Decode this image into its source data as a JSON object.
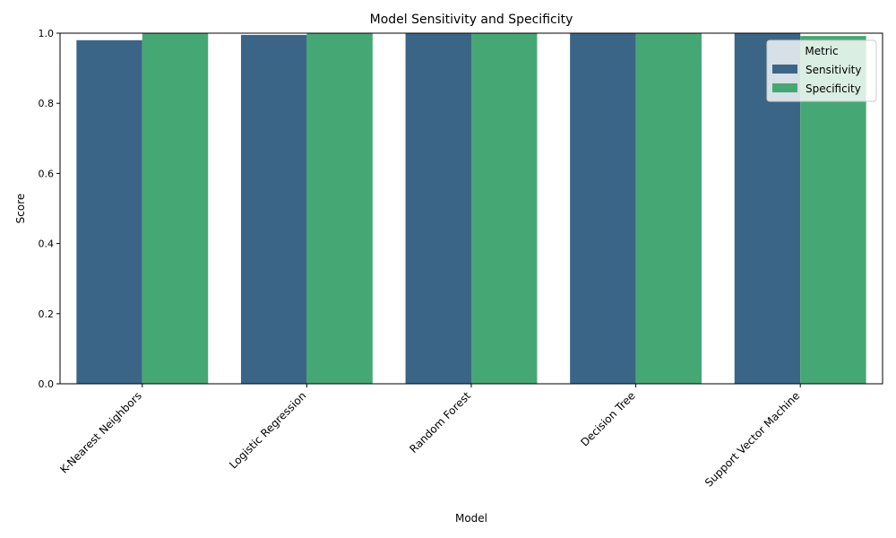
{
  "chart_data": {
    "type": "bar",
    "title": "Model Sensitivity and Specificity",
    "xlabel": "Model",
    "ylabel": "Score",
    "ylim": [
      0,
      1.0
    ],
    "yticks": [
      "0.0",
      "0.2",
      "0.4",
      "0.6",
      "0.8",
      "1.0"
    ],
    "categories": [
      "K-Nearest Neighbors",
      "Logistic Regression",
      "Random Forest",
      "Decision Tree",
      "Support Vector Machine"
    ],
    "series": [
      {
        "name": "Sensitivity",
        "color": "#3b6586",
        "values": [
          0.98,
          0.995,
          1.0,
          1.0,
          1.0
        ]
      },
      {
        "name": "Specificity",
        "color": "#45a874",
        "values": [
          1.0,
          1.0,
          1.0,
          1.0,
          0.992
        ]
      }
    ],
    "legend": {
      "title": "Metric",
      "placement": "top-right"
    },
    "grid": false
  }
}
